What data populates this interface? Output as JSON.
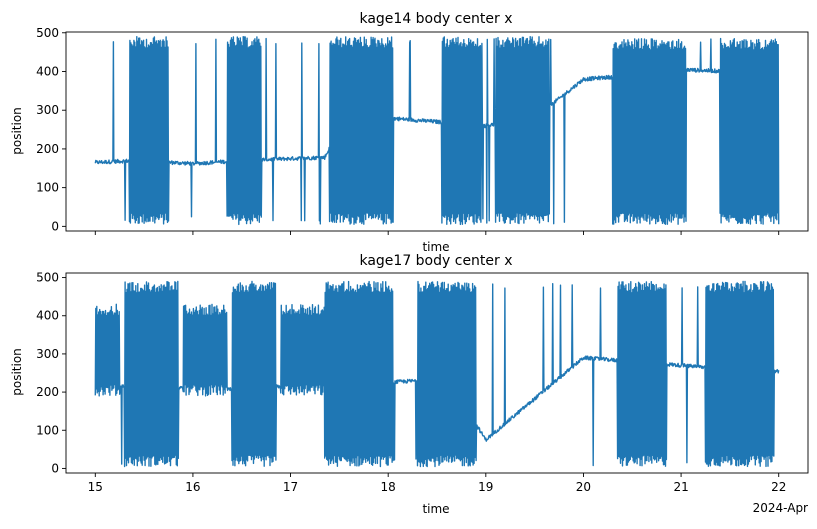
{
  "chart_data": [
    {
      "type": "line",
      "title": "kage14 body center x",
      "xlabel": "time",
      "ylabel": "position",
      "ylim": [
        -12,
        502
      ],
      "xlim": [
        14.7,
        22.3
      ],
      "yticks": [
        0,
        100,
        200,
        300,
        400,
        500
      ],
      "xtick_labels_shown": false,
      "grid": false,
      "color": "#1f77b4",
      "series": [
        {
          "x": [
            15.0,
            15.4,
            16.0,
            16.5,
            17.0,
            17.35,
            17.5,
            18.0,
            18.5,
            19.0,
            19.5,
            20.0,
            20.5,
            21.0,
            21.5,
            22.0
          ],
          "y": [
            165,
            170,
            162,
            170,
            175,
            178,
            250,
            280,
            270,
            260,
            280,
            380,
            390,
            405,
            400,
            400
          ],
          "noise_bursts": [
            {
              "from": 15.35,
              "to": 15.75,
              "low": 5,
              "high": 490
            },
            {
              "from": 16.35,
              "to": 16.7,
              "low": 5,
              "high": 490
            },
            {
              "from": 17.4,
              "to": 18.05,
              "low": 5,
              "high": 490
            },
            {
              "from": 18.55,
              "to": 18.95,
              "low": 5,
              "high": 490
            },
            {
              "from": 19.1,
              "to": 19.65,
              "low": 5,
              "high": 490
            },
            {
              "from": 20.3,
              "to": 21.05,
              "low": 5,
              "high": 485
            },
            {
              "from": 21.4,
              "to": 22.0,
              "low": 5,
              "high": 485
            }
          ]
        }
      ]
    },
    {
      "type": "line",
      "title": "kage17 body center x",
      "xlabel": "time",
      "ylabel": "position",
      "ylim": [
        -12,
        512
      ],
      "xlim": [
        14.7,
        22.3
      ],
      "yticks": [
        0,
        100,
        200,
        300,
        400,
        500
      ],
      "xticks": [
        "15",
        "16",
        "17",
        "18",
        "19",
        "20",
        "21",
        "22"
      ],
      "x_offset_label": "2024-Apr",
      "grid": false,
      "color": "#1f77b4",
      "series": [
        {
          "x": [
            15.0,
            15.3,
            15.85,
            16.3,
            16.9,
            17.3,
            18.0,
            18.6,
            19.0,
            20.0,
            20.5,
            21.0,
            21.5,
            22.0
          ],
          "y": [
            200,
            215,
            210,
            205,
            215,
            210,
            225,
            235,
            75,
            290,
            280,
            270,
            260,
            255
          ],
          "noise_bursts": [
            {
              "from": 15.0,
              "to": 15.25,
              "low": 190,
              "high": 430
            },
            {
              "from": 15.3,
              "to": 15.85,
              "low": 5,
              "high": 490
            },
            {
              "from": 15.9,
              "to": 16.35,
              "low": 190,
              "high": 430
            },
            {
              "from": 16.4,
              "to": 16.85,
              "low": 5,
              "high": 490
            },
            {
              "from": 16.9,
              "to": 17.35,
              "low": 190,
              "high": 430
            },
            {
              "from": 17.35,
              "to": 18.05,
              "low": 5,
              "high": 490
            },
            {
              "from": 18.3,
              "to": 18.9,
              "low": 5,
              "high": 490
            },
            {
              "from": 20.35,
              "to": 20.85,
              "low": 5,
              "high": 490
            },
            {
              "from": 21.25,
              "to": 21.95,
              "low": 5,
              "high": 490
            }
          ]
        }
      ]
    }
  ]
}
